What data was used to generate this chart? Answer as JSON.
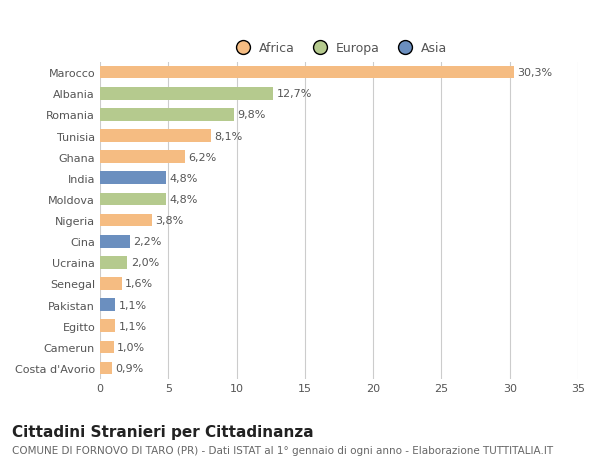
{
  "countries": [
    "Marocco",
    "Albania",
    "Romania",
    "Tunisia",
    "Ghana",
    "India",
    "Moldova",
    "Nigeria",
    "Cina",
    "Ucraina",
    "Senegal",
    "Pakistan",
    "Egitto",
    "Camerun",
    "Costa d'Avorio"
  ],
  "values": [
    30.3,
    12.7,
    9.8,
    8.1,
    6.2,
    4.8,
    4.8,
    3.8,
    2.2,
    2.0,
    1.6,
    1.1,
    1.1,
    1.0,
    0.9
  ],
  "continents": [
    "Africa",
    "Europa",
    "Europa",
    "Africa",
    "Africa",
    "Asia",
    "Europa",
    "Africa",
    "Asia",
    "Europa",
    "Africa",
    "Asia",
    "Africa",
    "Africa",
    "Africa"
  ],
  "colors": {
    "Africa": "#F5BC82",
    "Europa": "#B5CA8E",
    "Asia": "#6B8FBF"
  },
  "legend_labels": [
    "Africa",
    "Europa",
    "Asia"
  ],
  "legend_colors": [
    "#F5BC82",
    "#B5CA8E",
    "#6B8FBF"
  ],
  "title": "Cittadini Stranieri per Cittadinanza",
  "subtitle": "COMUNE DI FORNOVO DI TARO (PR) - Dati ISTAT al 1° gennaio di ogni anno - Elaborazione TUTTITALIA.IT",
  "xlim": [
    0,
    35
  ],
  "xticks": [
    0,
    5,
    10,
    15,
    20,
    25,
    30,
    35
  ],
  "background_color": "#ffffff",
  "bar_height": 0.6,
  "title_fontsize": 11,
  "subtitle_fontsize": 7.5,
  "tick_fontsize": 8,
  "label_fontsize": 8,
  "legend_fontsize": 9
}
